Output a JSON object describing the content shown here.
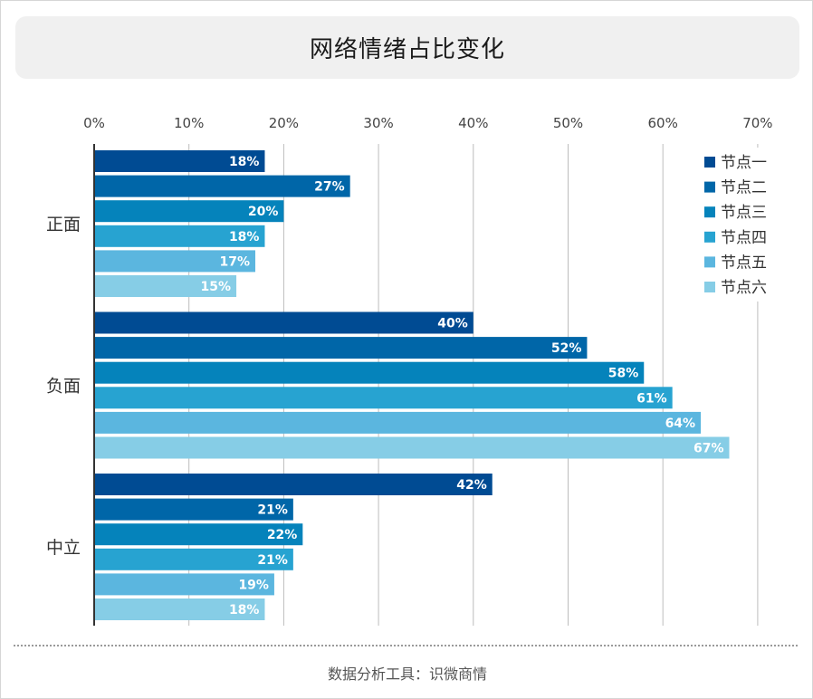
{
  "title": "网络情绪占比变化",
  "footer": "数据分析工具：识微商情",
  "chart_data": {
    "type": "bar",
    "orientation": "horizontal",
    "categories": [
      "正面",
      "负面",
      "中立"
    ],
    "series": [
      {
        "name": "节点一",
        "color": "#004b93",
        "values": [
          18,
          40,
          42
        ]
      },
      {
        "name": "节点二",
        "color": "#0066a8",
        "values": [
          27,
          52,
          21
        ]
      },
      {
        "name": "节点三",
        "color": "#0583bb",
        "values": [
          20,
          58,
          22
        ]
      },
      {
        "name": "节点四",
        "color": "#27a3d1",
        "values": [
          18,
          61,
          21
        ]
      },
      {
        "name": "节点五",
        "color": "#5bb6df",
        "values": [
          17,
          64,
          19
        ]
      },
      {
        "name": "节点六",
        "color": "#86cde6",
        "values": [
          15,
          67,
          18
        ]
      }
    ],
    "xlim": [
      0,
      70
    ],
    "xticks": [
      "0%",
      "10%",
      "20%",
      "30%",
      "40%",
      "50%",
      "60%",
      "70%"
    ],
    "value_suffix": "%",
    "legend_position": "top-right",
    "grid": true
  }
}
